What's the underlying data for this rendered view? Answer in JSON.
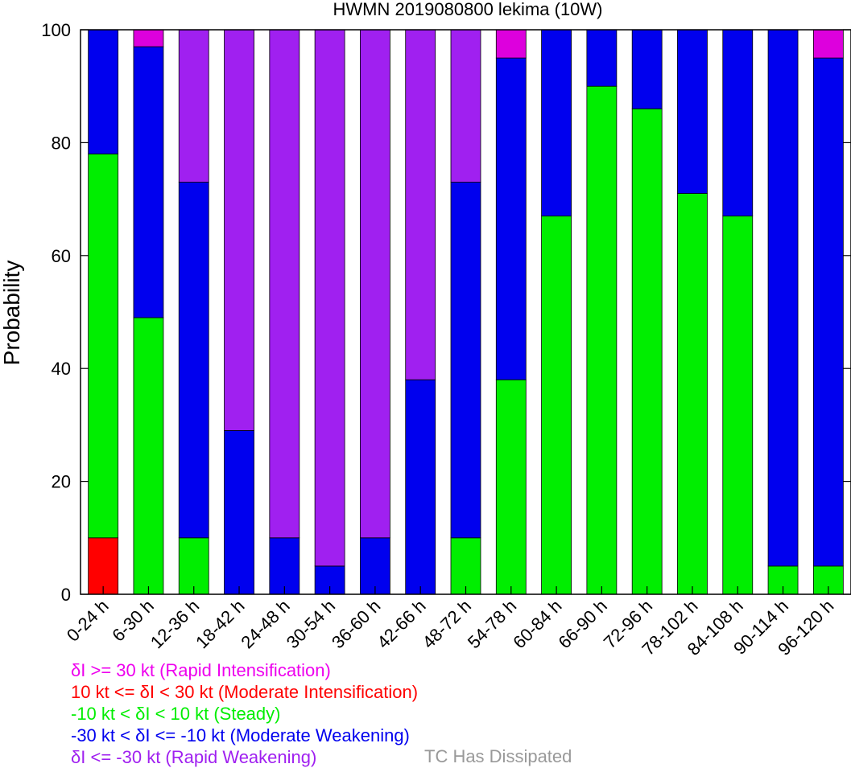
{
  "chart_data": {
    "type": "bar",
    "stacked": true,
    "title": "HWMN 2019080800 lekima (10W)",
    "ylabel": "Probability",
    "xlabel": "",
    "ylim": [
      0,
      100
    ],
    "yticks": [
      0,
      20,
      40,
      60,
      80,
      100
    ],
    "categories": [
      "0-24 h",
      "6-30 h",
      "12-36 h",
      "18-42 h",
      "24-48 h",
      "30-54 h",
      "36-60 h",
      "42-66 h",
      "48-72 h",
      "54-78 h",
      "60-84 h",
      "66-90 h",
      "72-96 h",
      "78-102 h",
      "84-108 h",
      "90-114 h",
      "96-120 h"
    ],
    "series": [
      {
        "key": "moderate_intensification",
        "color": "#ff0000",
        "values": [
          10,
          0,
          0,
          0,
          0,
          0,
          0,
          0,
          0,
          0,
          0,
          0,
          0,
          0,
          0,
          0,
          0
        ]
      },
      {
        "key": "steady",
        "color": "#00ee00",
        "values": [
          68,
          49,
          10,
          0,
          0,
          0,
          0,
          0,
          10,
          38,
          67,
          90,
          86,
          71,
          67,
          5,
          5
        ]
      },
      {
        "key": "moderate_weakening",
        "color": "#0000ee",
        "values": [
          22,
          48,
          63,
          29,
          10,
          5,
          10,
          38,
          63,
          57,
          33,
          10,
          14,
          29,
          33,
          95,
          90
        ]
      },
      {
        "key": "rapid_weakening",
        "color": "#a020f0",
        "values": [
          0,
          0,
          27,
          71,
          90,
          95,
          90,
          62,
          27,
          0,
          0,
          0,
          0,
          0,
          0,
          0,
          0
        ]
      },
      {
        "key": "rapid_intensification",
        "color": "#dd00dd",
        "values": [
          0,
          3,
          0,
          0,
          0,
          0,
          0,
          0,
          0,
          5,
          0,
          0,
          0,
          0,
          0,
          0,
          5
        ]
      }
    ]
  },
  "legend": [
    {
      "text": "δI >= 30 kt (Rapid Intensification)",
      "color": "#ee00ee"
    },
    {
      "text": "10 kt <= δI < 30 kt (Moderate Intensification)",
      "color": "#ff0000"
    },
    {
      "text": "-10 kt < δI < 10 kt (Steady)",
      "color": "#00ee00"
    },
    {
      "text": "-30 kt < δI <= -10 kt (Moderate Weakening)",
      "color": "#0000ee"
    },
    {
      "text": "δI <= -30 kt (Rapid Weakening)",
      "color": "#a020f0"
    }
  ],
  "dissipated_label": "TC Has Dissipated"
}
